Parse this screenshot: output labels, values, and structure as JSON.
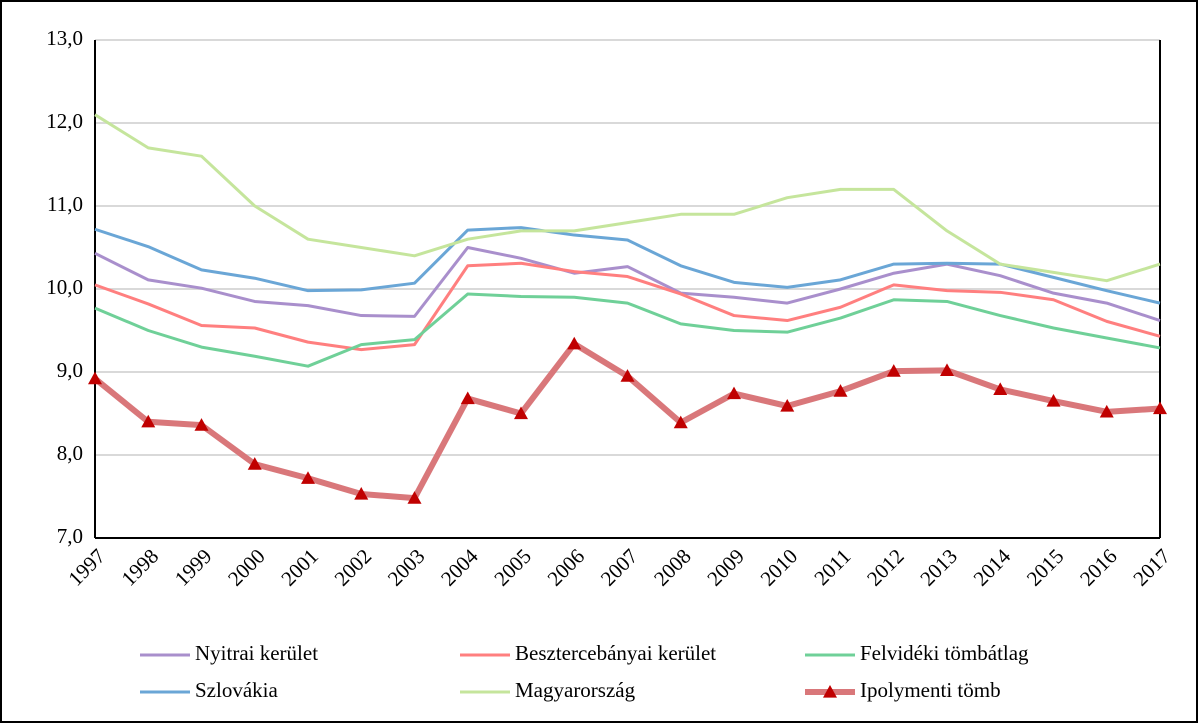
{
  "chart_data": {
    "type": "line",
    "categories": [
      "1997",
      "1998",
      "1999",
      "2000",
      "2001",
      "2002",
      "2003",
      "2004",
      "2005",
      "2006",
      "2007",
      "2008",
      "2009",
      "2010",
      "2011",
      "2012",
      "2013",
      "2014",
      "2015",
      "2016",
      "2017"
    ],
    "ylim": [
      7,
      13
    ],
    "yticks": [
      {
        "value": 7,
        "label": "7,0"
      },
      {
        "value": 8,
        "label": "8,0"
      },
      {
        "value": 9,
        "label": "9,0"
      },
      {
        "value": 10,
        "label": "10,0"
      },
      {
        "value": 11,
        "label": "11,0"
      },
      {
        "value": 12,
        "label": "12,0"
      },
      {
        "value": 13,
        "label": "13,0"
      }
    ],
    "grid": true,
    "legend": "bottom",
    "series": [
      {
        "name": "Nyitrai kerület",
        "color": "#a98fcc",
        "width": 3,
        "values": [
          10.43,
          10.11,
          10.01,
          9.85,
          9.8,
          9.68,
          9.67,
          10.5,
          10.37,
          10.19,
          10.27,
          9.95,
          9.9,
          9.83,
          10.0,
          10.19,
          10.3,
          10.16,
          9.95,
          9.83,
          9.62
        ]
      },
      {
        "name": "Besztercebányai kerület",
        "color": "#ff7f7f",
        "width": 3,
        "values": [
          10.05,
          9.82,
          9.56,
          9.53,
          9.36,
          9.27,
          9.33,
          10.28,
          10.31,
          10.21,
          10.15,
          9.94,
          9.68,
          9.62,
          9.78,
          10.05,
          9.98,
          9.96,
          9.87,
          9.61,
          9.43
        ]
      },
      {
        "name": "Felvidéki tömbátlag",
        "color": "#6fd098",
        "width": 3,
        "values": [
          9.77,
          9.5,
          9.3,
          9.19,
          9.07,
          9.33,
          9.39,
          9.94,
          9.91,
          9.9,
          9.83,
          9.58,
          9.5,
          9.48,
          9.65,
          9.87,
          9.85,
          9.68,
          9.53,
          9.41,
          9.29
        ]
      },
      {
        "name": "Szlovákia",
        "color": "#6aa6d6",
        "width": 3,
        "values": [
          10.72,
          10.51,
          10.23,
          10.13,
          9.98,
          9.99,
          10.07,
          10.71,
          10.74,
          10.65,
          10.59,
          10.28,
          10.08,
          10.02,
          10.11,
          10.3,
          10.31,
          10.3,
          10.14,
          9.98,
          9.83
        ]
      },
      {
        "name": "Magyarország",
        "color": "#c5e59c",
        "width": 3,
        "values": [
          12.1,
          11.7,
          11.6,
          11.0,
          10.6,
          10.5,
          10.4,
          10.6,
          10.7,
          10.7,
          10.8,
          10.9,
          10.9,
          11.1,
          11.2,
          11.2,
          10.7,
          10.3,
          10.2,
          10.1,
          10.3
        ]
      },
      {
        "name": "Ipolymenti tömb",
        "color": "#d9777a",
        "width": 6,
        "marker": "triangle",
        "marker_color": "#c00000",
        "values": [
          8.92,
          8.4,
          8.36,
          7.89,
          7.72,
          7.53,
          7.48,
          8.68,
          8.5,
          9.34,
          8.95,
          8.39,
          8.74,
          8.59,
          8.77,
          9.01,
          9.02,
          8.79,
          8.65,
          8.52,
          8.56
        ]
      }
    ]
  }
}
